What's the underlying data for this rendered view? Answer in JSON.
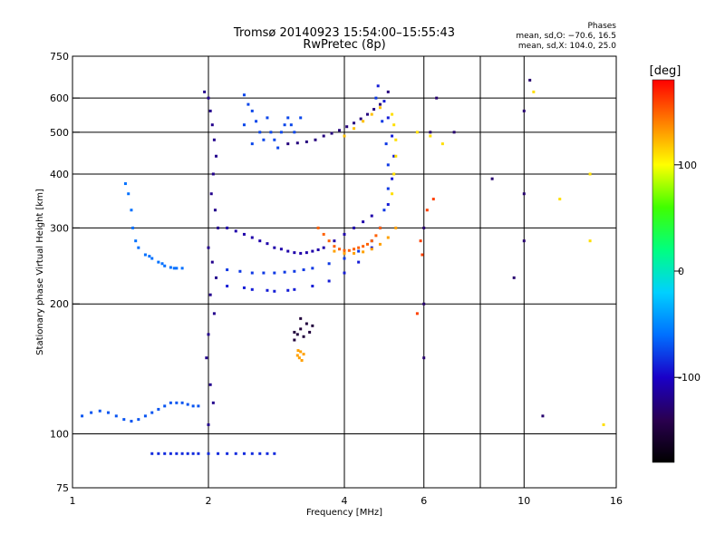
{
  "chart_data": {
    "type": "scatter",
    "title": "Tromsø 20140923 15:54:00–15:55:43",
    "subtitle": "RwPretec (8p)",
    "xlabel": "Frequency [MHz]",
    "ylabel": "Stationary phase Virtual Height [km]",
    "x_scale": "log",
    "y_scale": "log",
    "xlim": [
      1,
      16
    ],
    "ylim": [
      75,
      750
    ],
    "x_ticks": [
      1,
      2,
      4,
      6,
      10,
      16
    ],
    "x_gridlines": [
      2,
      4,
      6,
      8,
      10
    ],
    "y_ticks": [
      75,
      100,
      200,
      300,
      400,
      500,
      600,
      750
    ],
    "y_gridlines": [
      100,
      200,
      300,
      400,
      500,
      600
    ],
    "grid": true,
    "stats": {
      "heading": "Phases",
      "line1": "mean, sd,O: −70.6, 16.5",
      "line2": "mean, sd,X: 104.0, 25.0"
    },
    "colorbar": {
      "label": "[deg]",
      "range": [
        -180,
        180
      ],
      "ticks": [
        100,
        0,
        -100
      ],
      "stops": [
        "#000000",
        "#2a0050",
        "#1a00c8",
        "#0070ff",
        "#00d0ff",
        "#00ff80",
        "#40ff00",
        "#ffff00",
        "#ff8000",
        "#ff0000"
      ]
    },
    "series": [
      {
        "phase": -120,
        "points": [
          [
            2.0,
            600
          ],
          [
            2.02,
            560
          ],
          [
            2.04,
            520
          ],
          [
            2.06,
            480
          ],
          [
            2.08,
            440
          ],
          [
            2.05,
            400
          ],
          [
            2.03,
            360
          ],
          [
            2.07,
            330
          ],
          [
            2.1,
            300
          ],
          [
            2.0,
            270
          ],
          [
            2.04,
            250
          ],
          [
            2.08,
            230
          ],
          [
            2.02,
            210
          ],
          [
            2.06,
            190
          ],
          [
            2.0,
            170
          ],
          [
            1.98,
            150
          ],
          [
            2.02,
            130
          ],
          [
            2.05,
            118
          ],
          [
            2.0,
            105
          ],
          [
            1.96,
            620
          ]
        ]
      },
      {
        "phase": -110,
        "points": [
          [
            2.2,
            300
          ],
          [
            2.4,
            290
          ],
          [
            2.6,
            280
          ],
          [
            2.8,
            270
          ],
          [
            3.0,
            265
          ],
          [
            3.2,
            262
          ],
          [
            3.4,
            265
          ],
          [
            3.6,
            270
          ],
          [
            3.8,
            280
          ],
          [
            4.0,
            290
          ],
          [
            4.2,
            300
          ],
          [
            4.4,
            310
          ],
          [
            4.6,
            320
          ],
          [
            2.3,
            295
          ],
          [
            2.5,
            285
          ],
          [
            2.7,
            276
          ],
          [
            2.9,
            268
          ],
          [
            3.1,
            263
          ],
          [
            3.3,
            263
          ],
          [
            3.5,
            267
          ]
        ]
      },
      {
        "phase": -125,
        "points": [
          [
            3.0,
            470
          ],
          [
            3.3,
            475
          ],
          [
            3.6,
            490
          ],
          [
            3.9,
            505
          ],
          [
            4.2,
            525
          ],
          [
            4.5,
            550
          ],
          [
            4.8,
            580
          ],
          [
            5.0,
            620
          ],
          [
            3.15,
            472
          ],
          [
            3.45,
            480
          ],
          [
            3.75,
            497
          ],
          [
            4.05,
            515
          ],
          [
            4.35,
            537
          ],
          [
            4.65,
            565
          ]
        ]
      },
      {
        "phase": -80,
        "points": [
          [
            2.2,
            240
          ],
          [
            2.5,
            236
          ],
          [
            2.8,
            236
          ],
          [
            3.1,
            238
          ],
          [
            3.4,
            242
          ],
          [
            3.7,
            248
          ],
          [
            4.0,
            255
          ],
          [
            4.3,
            265
          ],
          [
            4.6,
            280
          ],
          [
            4.8,
            300
          ],
          [
            4.9,
            330
          ],
          [
            5.0,
            370
          ],
          [
            5.0,
            420
          ],
          [
            4.95,
            470
          ],
          [
            4.85,
            530
          ],
          [
            4.7,
            600
          ],
          [
            2.35,
            238
          ],
          [
            2.65,
            236
          ],
          [
            2.95,
            237
          ],
          [
            3.25,
            240
          ]
        ]
      },
      {
        "phase": -90,
        "points": [
          [
            2.2,
            220
          ],
          [
            2.5,
            216
          ],
          [
            2.8,
            214
          ],
          [
            3.1,
            216
          ],
          [
            3.4,
            220
          ],
          [
            3.7,
            226
          ],
          [
            4.0,
            236
          ],
          [
            4.3,
            250
          ],
          [
            4.6,
            270
          ],
          [
            4.8,
            300
          ],
          [
            5.0,
            340
          ],
          [
            5.1,
            390
          ],
          [
            5.15,
            440
          ],
          [
            5.1,
            490
          ],
          [
            5.0,
            540
          ],
          [
            4.9,
            590
          ],
          [
            4.75,
            640
          ],
          [
            2.4,
            218
          ],
          [
            2.7,
            215
          ],
          [
            3.0,
            215
          ]
        ]
      },
      {
        "phase": -60,
        "points": [
          [
            1.45,
            260
          ],
          [
            1.5,
            255
          ],
          [
            1.55,
            250
          ],
          [
            1.6,
            245
          ],
          [
            1.65,
            243
          ],
          [
            1.7,
            242
          ],
          [
            1.75,
            242
          ],
          [
            1.4,
            270
          ],
          [
            1.38,
            280
          ],
          [
            1.36,
            300
          ],
          [
            1.35,
            330
          ],
          [
            1.33,
            360
          ],
          [
            1.31,
            380
          ],
          [
            1.48,
            258
          ],
          [
            1.58,
            248
          ],
          [
            1.68,
            242
          ]
        ]
      },
      {
        "phase": -70,
        "points": [
          [
            1.05,
            110
          ],
          [
            1.1,
            112
          ],
          [
            1.15,
            113
          ],
          [
            1.2,
            112
          ],
          [
            1.25,
            110
          ],
          [
            1.3,
            108
          ],
          [
            1.35,
            107
          ],
          [
            1.4,
            108
          ],
          [
            1.45,
            110
          ],
          [
            1.5,
            112
          ],
          [
            1.55,
            114
          ],
          [
            1.6,
            116
          ],
          [
            1.65,
            118
          ],
          [
            1.7,
            118
          ],
          [
            1.75,
            118
          ],
          [
            1.8,
            117
          ],
          [
            1.85,
            116
          ],
          [
            1.9,
            116
          ]
        ]
      },
      {
        "phase": -85,
        "points": [
          [
            1.5,
            90
          ],
          [
            1.55,
            90
          ],
          [
            1.6,
            90
          ],
          [
            1.65,
            90
          ],
          [
            1.7,
            90
          ],
          [
            1.75,
            90
          ],
          [
            1.8,
            90
          ],
          [
            1.85,
            90
          ],
          [
            1.9,
            90
          ],
          [
            2.0,
            90
          ],
          [
            2.1,
            90
          ],
          [
            2.2,
            90
          ],
          [
            2.3,
            90
          ],
          [
            2.4,
            90
          ],
          [
            2.5,
            90
          ],
          [
            2.6,
            90
          ],
          [
            2.7,
            90
          ],
          [
            2.8,
            90
          ]
        ]
      },
      {
        "phase": -75,
        "points": [
          [
            2.4,
            610
          ],
          [
            2.45,
            580
          ],
          [
            2.5,
            560
          ],
          [
            2.55,
            530
          ],
          [
            2.6,
            500
          ],
          [
            2.65,
            480
          ],
          [
            2.4,
            520
          ],
          [
            2.5,
            470
          ],
          [
            2.7,
            540
          ],
          [
            2.75,
            500
          ],
          [
            2.8,
            480
          ],
          [
            2.85,
            460
          ],
          [
            2.9,
            500
          ],
          [
            2.95,
            520
          ],
          [
            3.0,
            540
          ],
          [
            3.05,
            520
          ],
          [
            3.1,
            500
          ],
          [
            3.2,
            540
          ]
        ]
      },
      {
        "phase": 150,
        "points": [
          [
            3.5,
            300
          ],
          [
            3.6,
            290
          ],
          [
            3.7,
            280
          ],
          [
            3.8,
            272
          ],
          [
            3.9,
            268
          ],
          [
            4.0,
            266
          ],
          [
            4.1,
            266
          ],
          [
            4.2,
            268
          ],
          [
            4.3,
            270
          ],
          [
            4.4,
            272
          ],
          [
            4.5,
            275
          ],
          [
            4.6,
            280
          ],
          [
            4.7,
            288
          ],
          [
            4.8,
            300
          ]
        ]
      },
      {
        "phase": 130,
        "points": [
          [
            3.8,
            265
          ],
          [
            4.0,
            262
          ],
          [
            4.2,
            262
          ],
          [
            4.4,
            264
          ],
          [
            4.6,
            268
          ],
          [
            4.8,
            275
          ],
          [
            5.0,
            285
          ],
          [
            5.2,
            300
          ]
        ]
      },
      {
        "phase": 120,
        "points": [
          [
            4.0,
            490
          ],
          [
            4.2,
            510
          ],
          [
            4.4,
            530
          ],
          [
            4.6,
            550
          ],
          [
            4.8,
            570
          ]
        ]
      },
      {
        "phase": 110,
        "points": [
          [
            5.1,
            360
          ],
          [
            5.15,
            400
          ],
          [
            5.2,
            440
          ],
          [
            5.2,
            480
          ],
          [
            5.15,
            520
          ],
          [
            5.1,
            550
          ]
        ]
      },
      {
        "phase": 130,
        "points": [
          [
            3.15,
            152
          ],
          [
            3.18,
            150
          ],
          [
            3.2,
            155
          ],
          [
            3.25,
            153
          ],
          [
            3.22,
            148
          ],
          [
            3.16,
            156
          ]
        ]
      },
      {
        "phase": -150,
        "points": [
          [
            3.1,
            165
          ],
          [
            3.15,
            170
          ],
          [
            3.2,
            175
          ],
          [
            3.3,
            180
          ],
          [
            3.25,
            168
          ],
          [
            3.35,
            172
          ],
          [
            3.4,
            178
          ],
          [
            3.2,
            185
          ],
          [
            3.1,
            172
          ]
        ]
      },
      {
        "phase": -130,
        "points": [
          [
            6.0,
            300
          ],
          [
            6.0,
            200
          ],
          [
            6.0,
            150
          ],
          [
            6.4,
            600
          ],
          [
            6.2,
            500
          ],
          [
            7.0,
            500
          ],
          [
            8.5,
            390
          ],
          [
            9.5,
            230
          ],
          [
            10.0,
            280
          ],
          [
            10.0,
            360
          ],
          [
            10.0,
            560
          ],
          [
            10.3,
            660
          ],
          [
            11.0,
            110
          ]
        ]
      },
      {
        "phase": 110,
        "points": [
          [
            5.8,
            500
          ],
          [
            6.2,
            490
          ],
          [
            6.6,
            470
          ],
          [
            14.0,
            400
          ],
          [
            14.0,
            280
          ],
          [
            15.0,
            105
          ],
          [
            12.0,
            350
          ],
          [
            10.5,
            620
          ]
        ]
      },
      {
        "phase": 160,
        "points": [
          [
            5.9,
            280
          ],
          [
            5.95,
            260
          ],
          [
            6.1,
            330
          ],
          [
            5.8,
            190
          ],
          [
            6.3,
            350
          ]
        ]
      }
    ]
  }
}
